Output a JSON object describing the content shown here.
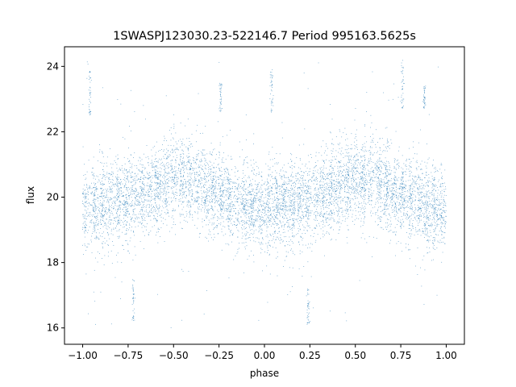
{
  "chart_data": {
    "type": "scatter",
    "title": "1SWASPJ123030.23-522146.7 Period 995163.5625s",
    "xlabel": "phase",
    "ylabel": "flux",
    "xlim": [
      -1.1,
      1.1
    ],
    "ylim": [
      15.5,
      24.6
    ],
    "xticks": [
      -1.0,
      -0.75,
      -0.5,
      -0.25,
      0.0,
      0.25,
      0.5,
      0.75,
      1.0
    ],
    "xtick_labels": [
      "−1.00",
      "−0.75",
      "−0.50",
      "−0.25",
      "0.00",
      "0.25",
      "0.50",
      "0.75",
      "1.00"
    ],
    "yticks": [
      16,
      18,
      20,
      22,
      24
    ],
    "ytick_labels": [
      "16",
      "18",
      "20",
      "22",
      "24"
    ],
    "grid": false,
    "point_color": "#1f77b4",
    "phase_range": [
      -1.0,
      1.0
    ],
    "trend": {
      "description": "two-hump light curve repeated over phase -1..1",
      "phase_knots": [
        -1.0,
        -0.9,
        -0.75,
        -0.6,
        -0.5,
        -0.4,
        -0.25,
        -0.1,
        0.0,
        0.1,
        0.25,
        0.4,
        0.5,
        0.6,
        0.75,
        0.9,
        1.0
      ],
      "flux_knots": [
        19.6,
        19.8,
        19.9,
        20.3,
        20.6,
        20.5,
        20.1,
        19.7,
        19.6,
        19.8,
        19.9,
        20.3,
        20.6,
        20.5,
        20.1,
        19.7,
        19.6
      ],
      "scatter_sigma": 0.65
    },
    "outlier_streaks": [
      {
        "phase": -0.96,
        "flux_range": [
          22.5,
          23.9
        ]
      },
      {
        "phase": -0.72,
        "flux_range": [
          16.2,
          17.5
        ]
      },
      {
        "phase": -0.24,
        "flux_range": [
          22.6,
          23.5
        ]
      },
      {
        "phase": 0.04,
        "flux_range": [
          22.6,
          23.9
        ]
      },
      {
        "phase": 0.24,
        "flux_range": [
          16.1,
          17.2
        ]
      },
      {
        "phase": 0.76,
        "flux_range": [
          22.7,
          24.2
        ]
      },
      {
        "phase": 0.88,
        "flux_range": [
          22.7,
          23.4
        ]
      }
    ]
  }
}
